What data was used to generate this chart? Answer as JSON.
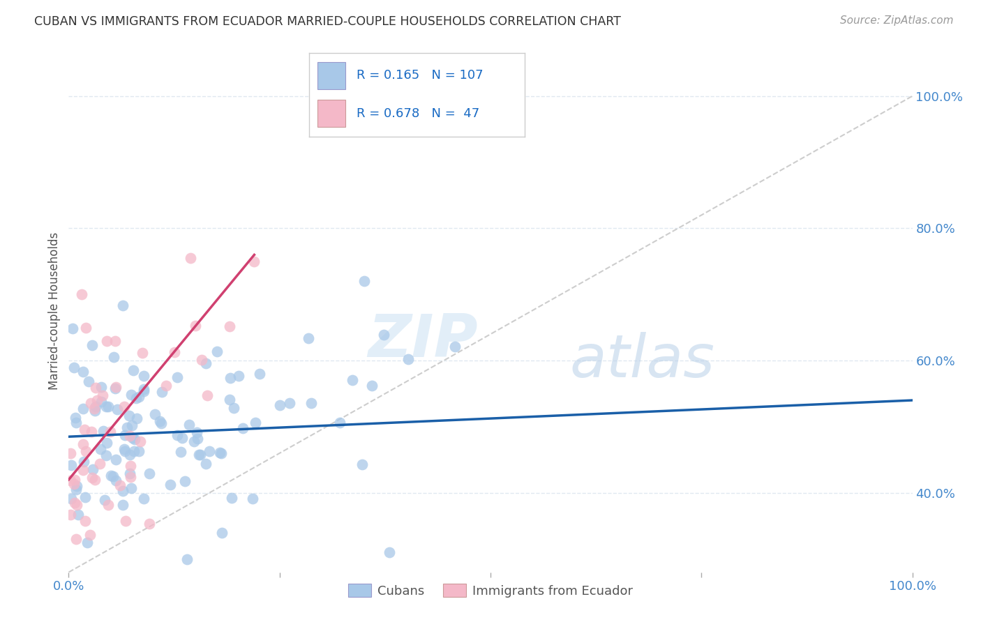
{
  "title": "CUBAN VS IMMIGRANTS FROM ECUADOR MARRIED-COUPLE HOUSEHOLDS CORRELATION CHART",
  "source": "Source: ZipAtlas.com",
  "ylabel": "Married-couple Households",
  "legend_label1": "Cubans",
  "legend_label2": "Immigrants from Ecuador",
  "legend_R1": "R = 0.165",
  "legend_N1": "N = 107",
  "legend_R2": "R = 0.678",
  "legend_N2": "N =  47",
  "blue_color": "#a8c8e8",
  "pink_color": "#f4b8c8",
  "line_blue": "#1a5fa8",
  "line_pink": "#d04070",
  "diagonal_color": "#c8c8c8",
  "title_color": "#333333",
  "source_color": "#999999",
  "axis_label_color": "#4488cc",
  "legend_text_color": "#1a6bc4",
  "background_color": "#ffffff",
  "grid_color": "#e0e8f0",
  "watermark_zip_color": "#d0e4f4",
  "watermark_atlas_color": "#b8d0e8",
  "xlim": [
    0,
    100
  ],
  "ylim": [
    28,
    107
  ],
  "ytick_positions": [
    40,
    60,
    80,
    100
  ],
  "ytick_labels": [
    "40.0%",
    "60.0%",
    "80.0%",
    "100.0%"
  ],
  "xtick_positions": [
    0,
    25,
    50,
    75,
    100
  ],
  "xtick_labels": [
    "0.0%",
    "",
    "",
    "",
    "100.0%"
  ]
}
